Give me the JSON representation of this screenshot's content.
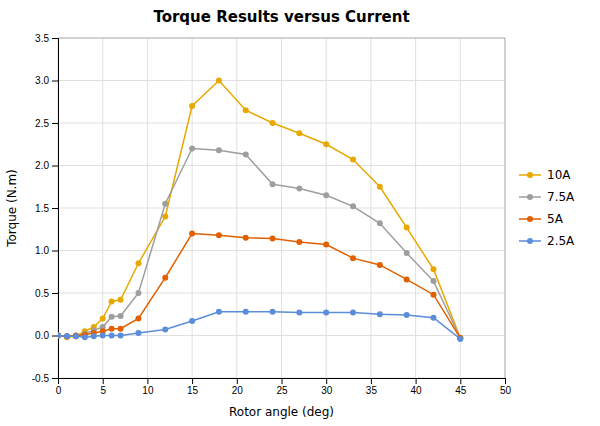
{
  "chart_data": {
    "type": "line",
    "title": "Torque Results versus Current",
    "xlabel": "Rotor angle (deg)",
    "ylabel": "Torque (N.m)",
    "xlim": [
      0,
      50
    ],
    "ylim": [
      -0.5,
      3.5
    ],
    "xticks": [
      0,
      5,
      10,
      15,
      20,
      25,
      30,
      35,
      40,
      45,
      50
    ],
    "yticks": [
      -0.5,
      {
        "value": 0.0,
        "label": "0.0"
      },
      0.5,
      {
        "value": 1.0,
        "label": "1.0"
      },
      1.5,
      {
        "value": 2.0,
        "label": "2.0"
      },
      2.5,
      {
        "value": 3.0,
        "label": "3.0"
      },
      3.5
    ],
    "grid": true,
    "legend": "right",
    "x": [
      0,
      1,
      2,
      3,
      4,
      5,
      6,
      7,
      9,
      12,
      15,
      18,
      21,
      24,
      27,
      30,
      33,
      36,
      39,
      42,
      45
    ],
    "series": [
      {
        "name": "10A",
        "color": "#E8A800",
        "marker": "circle",
        "values": [
          0.0,
          -0.02,
          -0.01,
          0.05,
          0.1,
          0.2,
          0.4,
          0.42,
          0.85,
          1.4,
          2.7,
          3.0,
          2.65,
          2.5,
          2.38,
          2.25,
          2.07,
          1.75,
          1.27,
          0.78,
          -0.03
        ]
      },
      {
        "name": "7.5A",
        "color": "#9E9E9E",
        "marker": "circle",
        "values": [
          0.0,
          -0.01,
          -0.01,
          0.02,
          0.06,
          0.1,
          0.22,
          0.23,
          0.5,
          1.55,
          2.2,
          2.18,
          2.13,
          1.78,
          1.73,
          1.65,
          1.52,
          1.32,
          0.97,
          0.64,
          -0.03
        ]
      },
      {
        "name": "5A",
        "color": "#E06000",
        "marker": "circle",
        "values": [
          0.0,
          -0.01,
          0.0,
          0.01,
          0.03,
          0.05,
          0.08,
          0.08,
          0.2,
          0.68,
          1.2,
          1.18,
          1.15,
          1.14,
          1.1,
          1.07,
          0.91,
          0.83,
          0.66,
          0.48,
          -0.03
        ]
      },
      {
        "name": "2.5A",
        "color": "#5B8DD9",
        "marker": "circle",
        "values": [
          0.0,
          -0.01,
          -0.01,
          -0.02,
          -0.01,
          0.0,
          0.0,
          0.0,
          0.03,
          0.07,
          0.17,
          0.28,
          0.28,
          0.28,
          0.27,
          0.27,
          0.27,
          0.25,
          0.24,
          0.21,
          -0.04
        ]
      }
    ]
  }
}
